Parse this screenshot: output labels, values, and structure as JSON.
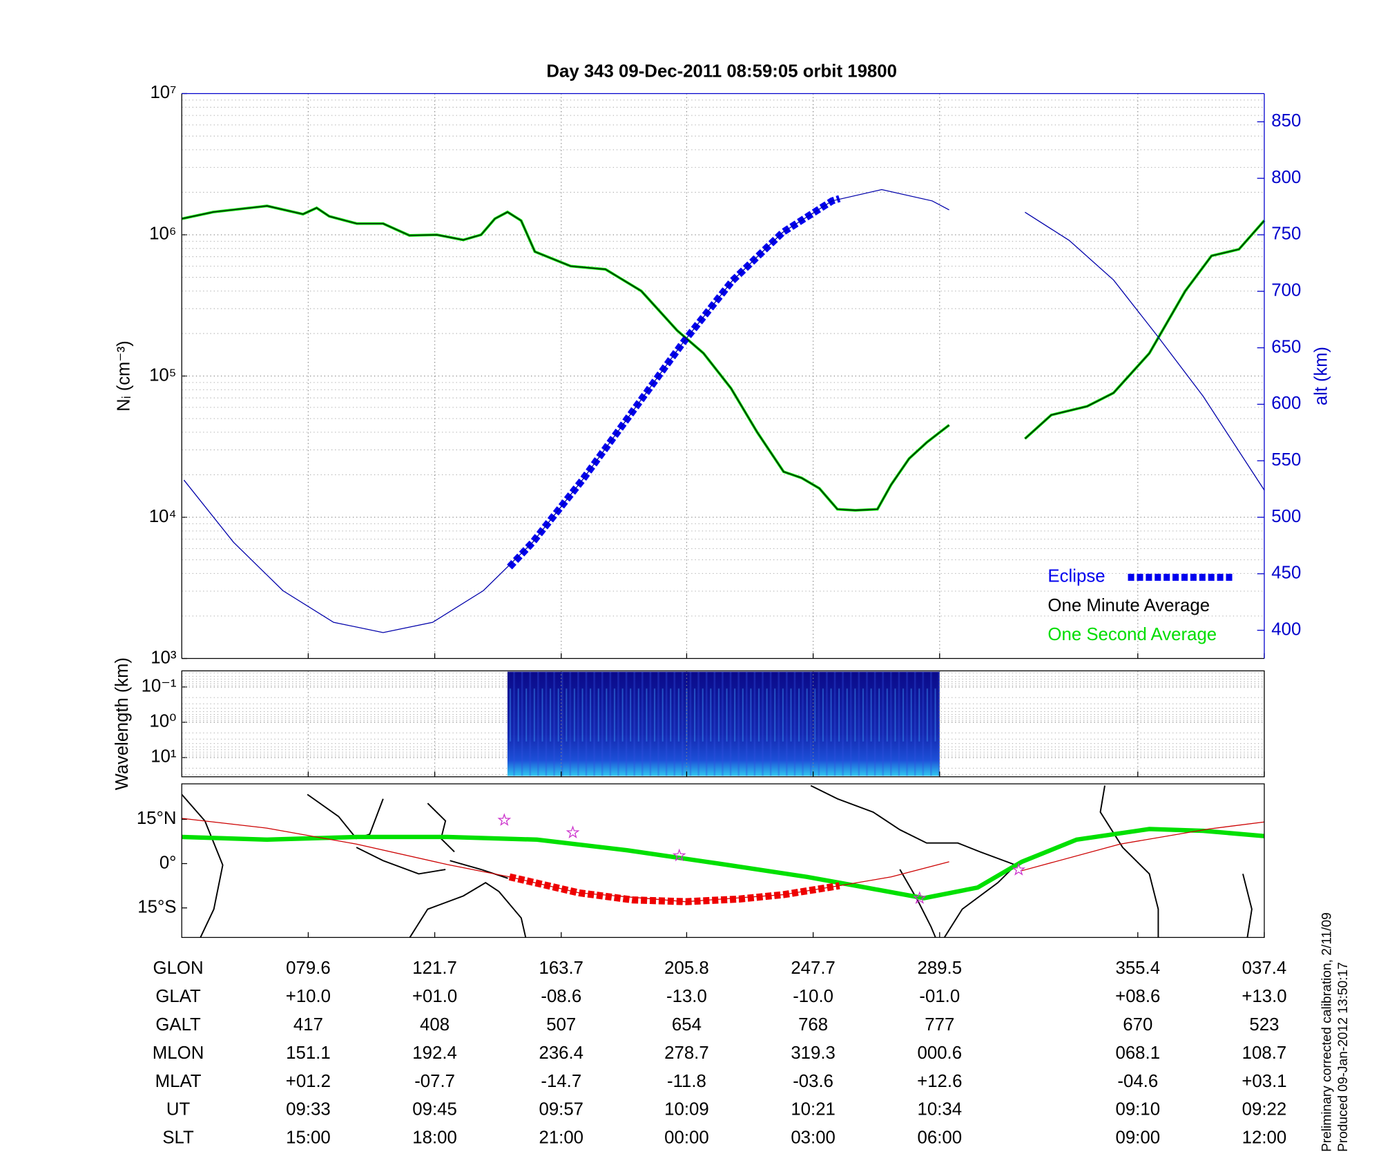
{
  "chart_data": [
    {
      "type": "line",
      "title": "Day 343  09-Dec-2011 08:59:05   orbit 19800",
      "ylabel": "Nᵢ (cm⁻³)",
      "y2label": "alt (km)",
      "log_y": true,
      "ylim": [
        1000,
        10000000
      ],
      "yticks": [
        {
          "value": 1000,
          "label": "10³"
        },
        {
          "value": 10000,
          "label": "10⁴"
        },
        {
          "value": 100000,
          "label": "10⁵"
        },
        {
          "value": 1000000,
          "label": "10⁶"
        },
        {
          "value": 10000000,
          "label": "10⁷"
        }
      ],
      "y2lim": [
        375,
        875
      ],
      "y2ticks": [
        400,
        450,
        500,
        550,
        600,
        650,
        700,
        750,
        800,
        850
      ],
      "xlim": [
        0,
        102.7
      ],
      "xticks": [
        12,
        24,
        36,
        47.9,
        59.9,
        71.9,
        90.7,
        102.7
      ],
      "grid": true,
      "legend": "lower right",
      "series": [
        {
          "name": "Eclipse",
          "color": "#0000ee",
          "axis": "y2",
          "style": "dotted",
          "x": [
            31.1,
            33.3,
            38.0,
            42.8,
            47.5,
            52.2,
            57.0,
            61.7,
            62.4
          ],
          "values": [
            456,
            478,
            533,
            594,
            654,
            709,
            752,
            780,
            782
          ]
        },
        {
          "name": "One Minute Average",
          "color": "#000000",
          "style": "thin",
          "x": [
            0,
            3.0,
            8.1,
            11.5,
            12.8,
            14.0,
            16.6,
            19.1,
            21.6,
            24.2,
            26.7,
            28.4,
            29.7,
            30.9,
            32.2,
            33.5,
            36.9,
            40.2,
            43.6,
            47.0,
            49.5,
            52.1,
            54.6,
            57.1,
            58.8,
            60.5,
            62.2,
            63.9,
            66.0,
            67.3,
            69.0,
            70.7,
            72.8,
            null,
            80.0,
            82.5,
            85.9,
            88.4,
            91.8,
            95.2,
            97.7,
            100.3,
            102.7
          ],
          "values": [
            1300000,
            1450000,
            1600000,
            1400000,
            1550000,
            1350000,
            1200000,
            1200000,
            990000,
            1000000,
            920000,
            1000000,
            1300000,
            1450000,
            1260000,
            760000,
            600000,
            570000,
            400000,
            210000,
            145000,
            82000,
            40000,
            21000,
            19000,
            16000,
            11400,
            11200,
            11400,
            17000,
            26000,
            34000,
            45000,
            null,
            36000,
            53000,
            61000,
            76000,
            145000,
            400000,
            710000,
            790000,
            1260000
          ]
        },
        {
          "name": "One Second Average",
          "color": "#00dd00",
          "style": "under",
          "x": [
            0,
            3.0,
            8.1,
            11.5,
            12.8,
            14.0,
            16.6,
            19.1,
            21.6,
            24.2,
            26.7,
            28.4,
            29.7,
            30.9,
            32.2,
            33.5,
            36.9,
            40.2,
            43.6,
            47.0,
            49.5,
            52.1,
            54.6,
            57.1,
            58.8,
            60.5,
            62.2,
            63.9,
            66.0,
            67.3,
            69.0,
            70.7,
            72.8,
            null,
            80.0,
            82.5,
            85.9,
            88.4,
            91.8,
            95.2,
            97.7,
            100.3,
            102.7
          ],
          "values": [
            1300000,
            1450000,
            1600000,
            1400000,
            1550000,
            1350000,
            1200000,
            1200000,
            990000,
            1000000,
            920000,
            1000000,
            1300000,
            1450000,
            1260000,
            760000,
            600000,
            570000,
            400000,
            210000,
            145000,
            82000,
            40000,
            21000,
            19000,
            16000,
            11400,
            11200,
            11400,
            17000,
            26000,
            34000,
            45000,
            null,
            36000,
            53000,
            61000,
            76000,
            145000,
            400000,
            710000,
            790000,
            1260000
          ]
        },
        {
          "color": "#0000aa",
          "axis": "y2",
          "style": "thin",
          "x": [
            0.2,
            4.9,
            9.6,
            14.4,
            19.1,
            23.8,
            28.6,
            33.3,
            38.0,
            42.8,
            47.5,
            52.2,
            57.0,
            61.7,
            66.4,
            71.2,
            72.8,
            null,
            80.0,
            84.2,
            88.4,
            92.6,
            96.9,
            102.7
          ],
          "values": [
            533,
            478,
            435,
            407,
            398,
            407,
            435,
            478,
            533,
            594,
            654,
            709,
            752,
            780,
            790,
            780,
            772,
            null,
            770,
            745,
            710,
            660,
            607,
            524
          ]
        }
      ]
    },
    {
      "type": "spectrogram",
      "ylabel": "Wavelength (km)",
      "log_y": true,
      "ylim": [
        0.035,
        35
      ],
      "yticks": [
        {
          "value": 0.1,
          "label": "10⁻¹"
        },
        {
          "value": 1,
          "label": "10⁰"
        },
        {
          "value": 10,
          "label": "10¹"
        }
      ],
      "xlim": [
        0,
        102.7
      ],
      "xticks": [
        12,
        24,
        36,
        47.9,
        59.9,
        71.9,
        90.7,
        102.7
      ],
      "extent": [
        30.9,
        71.9
      ]
    },
    {
      "type": "map",
      "ylim": [
        -25,
        27
      ],
      "yticks": [
        {
          "value": 15,
          "label": "15°N"
        },
        {
          "value": 0,
          "label": "0°"
        },
        {
          "value": -15,
          "label": "15°S"
        }
      ],
      "xlim": [
        0,
        102.7
      ],
      "xticks": [
        12,
        24,
        36,
        47.9,
        59.9,
        71.9,
        90.7,
        102.7
      ],
      "series": [
        {
          "color": "#00e000",
          "style": "thick",
          "x": [
            0,
            8.1,
            16.6,
            25.2,
            33.7,
            42.3,
            50.9,
            59.3,
            64.4,
            70.4,
            75.5,
            79.7,
            84.9,
            91.8,
            96.9,
            102.7
          ],
          "values": [
            9,
            8.1,
            9,
            9,
            8.1,
            4.5,
            0,
            -4.5,
            -7.8,
            -11.7,
            -8.1,
            0.6,
            8.1,
            11.7,
            11.1,
            9.3
          ]
        },
        {
          "color": "#cc0000",
          "style": "thin",
          "x": [
            0,
            8.1,
            16.6,
            25.2,
            31.1,
            37.7,
            47.8,
            57.1,
            62.4,
            67.3,
            72.8,
            null,
            79.7,
            89.0,
            97.4,
            102.7
          ],
          "values": [
            15.3,
            12.0,
            6.6,
            -0.3,
            -4.5,
            -9.9,
            -12.9,
            -10.5,
            -7.5,
            -4.5,
            0.6,
            null,
            -2.4,
            6.6,
            11.7,
            14.1
          ]
        },
        {
          "color": "#ee0000",
          "style": "dotted",
          "x": [
            31.1,
            37.7,
            42.8,
            47.8,
            52.9,
            57.1,
            62.4
          ],
          "values": [
            -4.5,
            -9.9,
            -12.3,
            -12.9,
            -12,
            -10.5,
            -7.5
          ]
        },
        {
          "color": "#cc33cc",
          "style": "markers",
          "x": [
            30.6,
            37.1,
            47.2,
            70.0,
            79.4
          ],
          "values": [
            14.7,
            10.5,
            2.7,
            -11.7,
            -2.1
          ]
        }
      ]
    }
  ],
  "table": {
    "rows": [
      {
        "name": "GLON",
        "values": [
          "079.6",
          "121.7",
          "163.7",
          "205.8",
          "247.7",
          "289.5",
          "355.4",
          "037.4"
        ]
      },
      {
        "name": "GLAT",
        "values": [
          "+10.0",
          "+01.0",
          "-08.6",
          "-13.0",
          "-10.0",
          "-01.0",
          "+08.6",
          "+13.0"
        ]
      },
      {
        "name": "GALT",
        "values": [
          "417",
          "408",
          "507",
          "654",
          "768",
          "777",
          "670",
          "523"
        ]
      },
      {
        "name": "MLON",
        "values": [
          "151.1",
          "192.4",
          "236.4",
          "278.7",
          "319.3",
          "000.6",
          "068.1",
          "108.7"
        ]
      },
      {
        "name": "MLAT",
        "values": [
          "+01.2",
          "-07.7",
          "-14.7",
          "-11.8",
          "-03.6",
          "+12.6",
          "-04.6",
          "+03.1"
        ]
      },
      {
        "name": "UT",
        "values": [
          "09:33",
          "09:45",
          "09:57",
          "10:09",
          "10:21",
          "10:34",
          "09:10",
          "09:22"
        ]
      },
      {
        "name": "SLT",
        "values": [
          "15:00",
          "18:00",
          "21:00",
          "00:00",
          "03:00",
          "06:00",
          "09:00",
          "12:00"
        ]
      }
    ]
  },
  "notes": [
    "Preliminary corrected calibration, 2/11/09",
    "Produced 09-Jan-2012 13:50:17"
  ]
}
